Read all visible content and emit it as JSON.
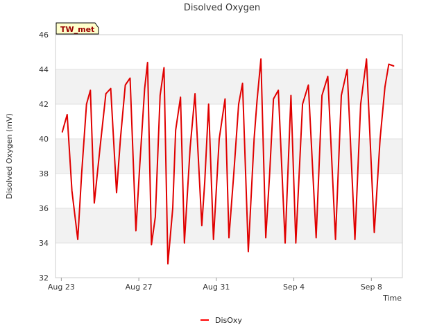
{
  "chart_data": {
    "type": "line",
    "title": "Disolved Oxygen",
    "xlabel": "Time",
    "ylabel": "Disolved Oxygen (mV)",
    "ylim": [
      32,
      46
    ],
    "yticks": [
      32,
      34,
      36,
      38,
      40,
      42,
      44,
      46
    ],
    "xlim": [
      -0.3,
      17.6
    ],
    "xticks": [
      {
        "label": "Aug 23",
        "day": 0
      },
      {
        "label": "Aug 27",
        "day": 4
      },
      {
        "label": "Aug 31",
        "day": 8
      },
      {
        "label": "Sep 4",
        "day": 12
      },
      {
        "label": "Sep 8",
        "day": 16
      }
    ],
    "site_label": "TW_met",
    "legend": [
      {
        "name": "DisOxy",
        "color": "#ff0000"
      }
    ],
    "series": [
      {
        "name": "DisOxy",
        "color": "#e00000",
        "x": [
          0.05,
          0.3,
          0.55,
          0.85,
          1.05,
          1.3,
          1.5,
          1.7,
          2.0,
          2.3,
          2.55,
          2.85,
          3.05,
          3.3,
          3.55,
          3.85,
          4.05,
          4.3,
          4.45,
          4.65,
          4.85,
          5.1,
          5.3,
          5.5,
          5.75,
          5.9,
          6.15,
          6.35,
          6.65,
          6.9,
          7.25,
          7.4,
          7.6,
          7.85,
          8.15,
          8.45,
          8.65,
          8.9,
          9.15,
          9.35,
          9.65,
          9.95,
          10.1,
          10.3,
          10.55,
          10.75,
          10.95,
          11.2,
          11.55,
          11.85,
          12.1,
          12.45,
          12.75,
          13.15,
          13.45,
          13.75,
          14.15,
          14.45,
          14.75,
          15.15,
          15.45,
          15.75,
          16.15,
          16.45,
          16.7,
          16.9,
          17.15
        ],
        "y": [
          40.4,
          41.4,
          37.0,
          34.2,
          38.0,
          42.0,
          42.8,
          36.3,
          39.5,
          42.6,
          42.9,
          36.9,
          40.0,
          43.1,
          43.5,
          34.7,
          38.5,
          42.9,
          44.4,
          33.9,
          35.5,
          42.5,
          44.1,
          32.8,
          36.0,
          40.5,
          42.4,
          34.0,
          39.5,
          42.6,
          35.0,
          37.5,
          42.0,
          34.2,
          40.0,
          42.3,
          34.3,
          38.0,
          42.0,
          43.2,
          33.5,
          40.0,
          42.2,
          44.6,
          34.3,
          38.0,
          42.3,
          42.8,
          34.0,
          42.5,
          34.0,
          42.0,
          43.1,
          34.3,
          42.5,
          43.6,
          34.2,
          42.5,
          44.0,
          34.2,
          42.0,
          44.6,
          34.6,
          40.0,
          43.0,
          44.3,
          44.2
        ]
      }
    ]
  }
}
